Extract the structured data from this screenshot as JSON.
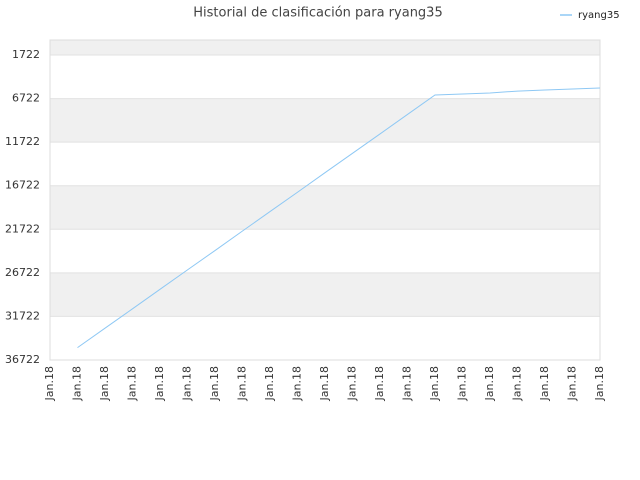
{
  "chart_data": {
    "type": "line",
    "title": "Historial de clasificación para ryang35",
    "categories": [
      "Jan.18",
      "Jan.18",
      "Jan.18",
      "Jan.18",
      "Jan.18",
      "Jan.18",
      "Jan.18",
      "Jan.18",
      "Jan.18",
      "Jan.18",
      "Jan.18",
      "Jan.18",
      "Jan.18",
      "Jan.18",
      "Jan.18",
      "Jan.18",
      "Jan.18",
      "Jan.18",
      "Jan.18",
      "Jan.18",
      "Jan.18"
    ],
    "series": [
      {
        "name": "ryang35",
        "color": "#8ec8f4",
        "values": [
          null,
          35300,
          33070,
          30850,
          28610,
          26380,
          24160,
          21920,
          19690,
          17470,
          15230,
          13000,
          10780,
          8540,
          6310,
          6200,
          6080,
          5860,
          5740,
          5630,
          5510
        ]
      }
    ],
    "ylim": [
      36722,
      0
    ],
    "yticks": [
      1722,
      6722,
      11722,
      16722,
      21722,
      26722,
      31722,
      36722
    ],
    "grid": true,
    "legend": "top-right"
  }
}
